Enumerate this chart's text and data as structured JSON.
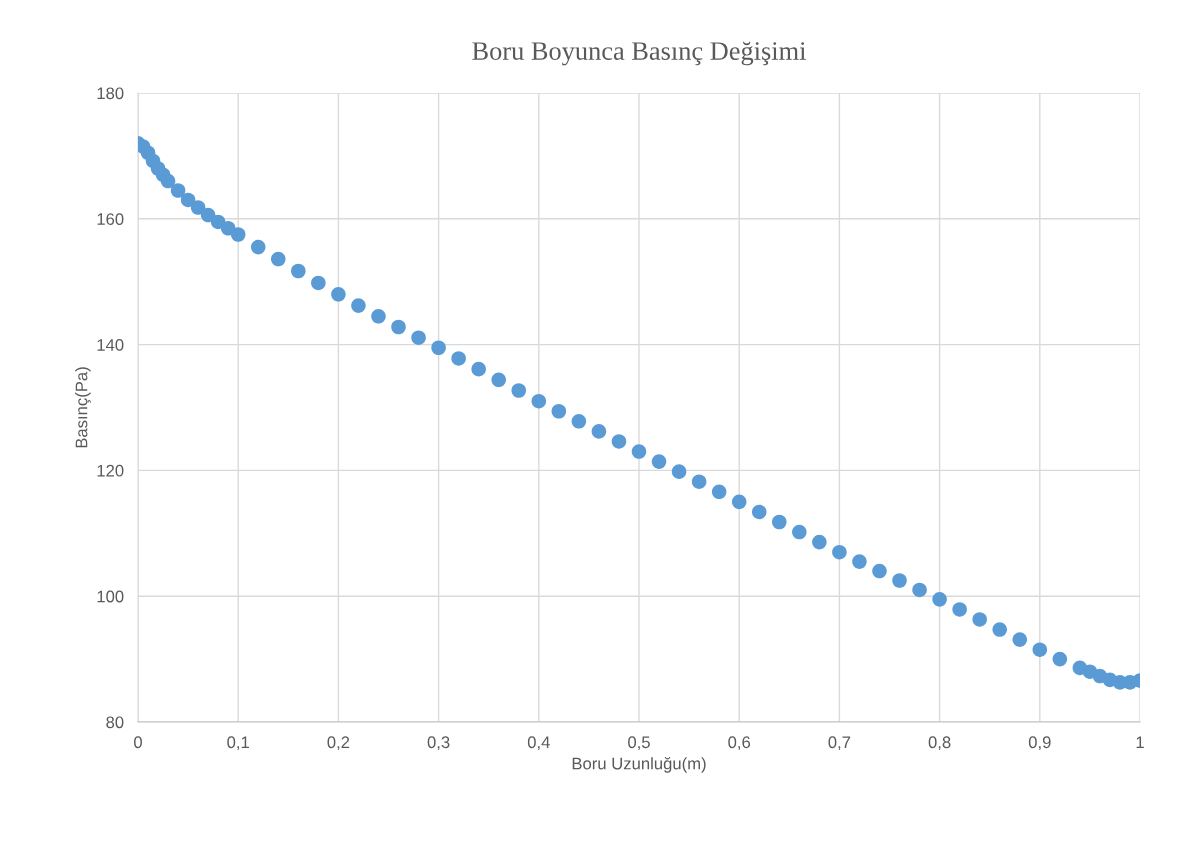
{
  "chart_data": {
    "type": "scatter",
    "title": "Boru Boyunca Basınç Değişimi",
    "xlabel": "Boru Uzunluğu(m)",
    "ylabel": "Basınç(Pa)",
    "x": [
      0,
      0.005,
      0.01,
      0.015,
      0.02,
      0.025,
      0.03,
      0.04,
      0.05,
      0.06,
      0.07,
      0.08,
      0.09,
      0.1,
      0.12,
      0.14,
      0.16,
      0.18,
      0.2,
      0.22,
      0.24,
      0.26,
      0.28,
      0.3,
      0.32,
      0.34,
      0.36,
      0.38,
      0.4,
      0.42,
      0.44,
      0.46,
      0.48,
      0.5,
      0.52,
      0.54,
      0.56,
      0.58,
      0.6,
      0.62,
      0.64,
      0.66,
      0.68,
      0.7,
      0.72,
      0.74,
      0.76,
      0.78,
      0.8,
      0.82,
      0.84,
      0.86,
      0.88,
      0.9,
      0.92,
      0.94,
      0.95,
      0.96,
      0.97,
      0.98,
      0.99,
      1
    ],
    "series": [
      {
        "color": "#5b9bd5",
        "values": [
          172,
          171.5,
          170.5,
          169.2,
          168,
          167,
          166,
          164.5,
          163,
          161.8,
          160.6,
          159.5,
          158.5,
          157.5,
          155.5,
          153.6,
          151.7,
          149.8,
          148,
          146.2,
          144.5,
          142.8,
          141.1,
          139.5,
          137.8,
          136.1,
          134.4,
          132.7,
          131,
          129.4,
          127.8,
          126.2,
          124.6,
          123,
          121.4,
          119.8,
          118.2,
          116.6,
          115,
          113.4,
          111.8,
          110.2,
          108.6,
          107,
          105.5,
          104,
          102.5,
          101,
          99.5,
          97.9,
          96.3,
          94.7,
          93.1,
          91.5,
          90,
          88.6,
          88,
          87.3,
          86.7,
          86.3,
          86.3,
          86.6
        ]
      }
    ],
    "xlim": [
      0,
      1
    ],
    "ylim": [
      80,
      180
    ],
    "xticks": [
      0,
      {
        "value": 0.1,
        "label": "0,1"
      },
      {
        "value": 0.2,
        "label": "0,2"
      },
      {
        "value": 0.3,
        "label": "0,3"
      },
      {
        "value": 0.4,
        "label": "0,4"
      },
      {
        "value": 0.5,
        "label": "0,5"
      },
      {
        "value": 0.6,
        "label": "0,6"
      },
      {
        "value": 0.7,
        "label": "0,7"
      },
      {
        "value": 0.8,
        "label": "0,8"
      },
      {
        "value": 0.9,
        "label": "0,9"
      },
      1
    ],
    "yticks": [
      80,
      100,
      120,
      140,
      160,
      180
    ],
    "grid": true,
    "marker": "circle"
  }
}
